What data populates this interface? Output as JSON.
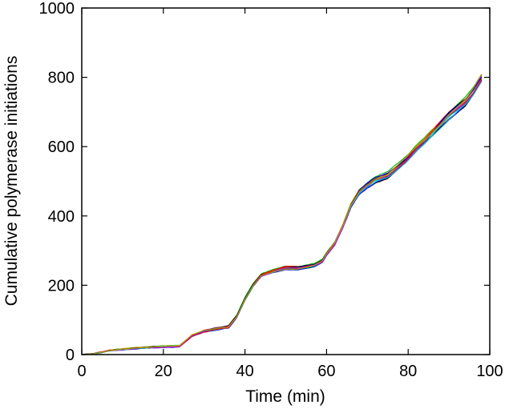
{
  "chart_data": {
    "type": "line",
    "title": "",
    "xlabel": "Time (min)",
    "ylabel": "Cumulative polymerase initiations",
    "xlim": [
      0,
      100
    ],
    "ylim": [
      0,
      1000
    ],
    "xticks": [
      0,
      20,
      40,
      60,
      80,
      100
    ],
    "yticks": [
      0,
      200,
      400,
      600,
      800,
      1000
    ],
    "grid": false,
    "legend": "none",
    "series_colors": [
      "#0000ff",
      "#00aa00",
      "#ff0000",
      "#00cccc",
      "#cc00cc",
      "#aaaa00",
      "#000000"
    ],
    "trajectory_count_estimate": 20,
    "mean_trajectory": {
      "x": [
        0,
        3,
        7,
        12,
        18,
        24,
        27,
        30,
        36,
        38,
        40,
        42,
        44,
        47,
        50,
        53,
        57,
        59,
        60,
        62,
        64,
        66,
        68,
        70,
        72,
        75,
        78,
        80,
        82,
        84,
        86,
        88,
        90,
        92,
        94,
        96,
        98
      ],
      "y": [
        0,
        2,
        12,
        17,
        22,
        25,
        55,
        68,
        80,
        110,
        160,
        200,
        228,
        240,
        250,
        250,
        258,
        270,
        290,
        320,
        370,
        430,
        470,
        490,
        505,
        518,
        548,
        570,
        595,
        615,
        640,
        665,
        690,
        710,
        730,
        760,
        800
      ]
    }
  }
}
